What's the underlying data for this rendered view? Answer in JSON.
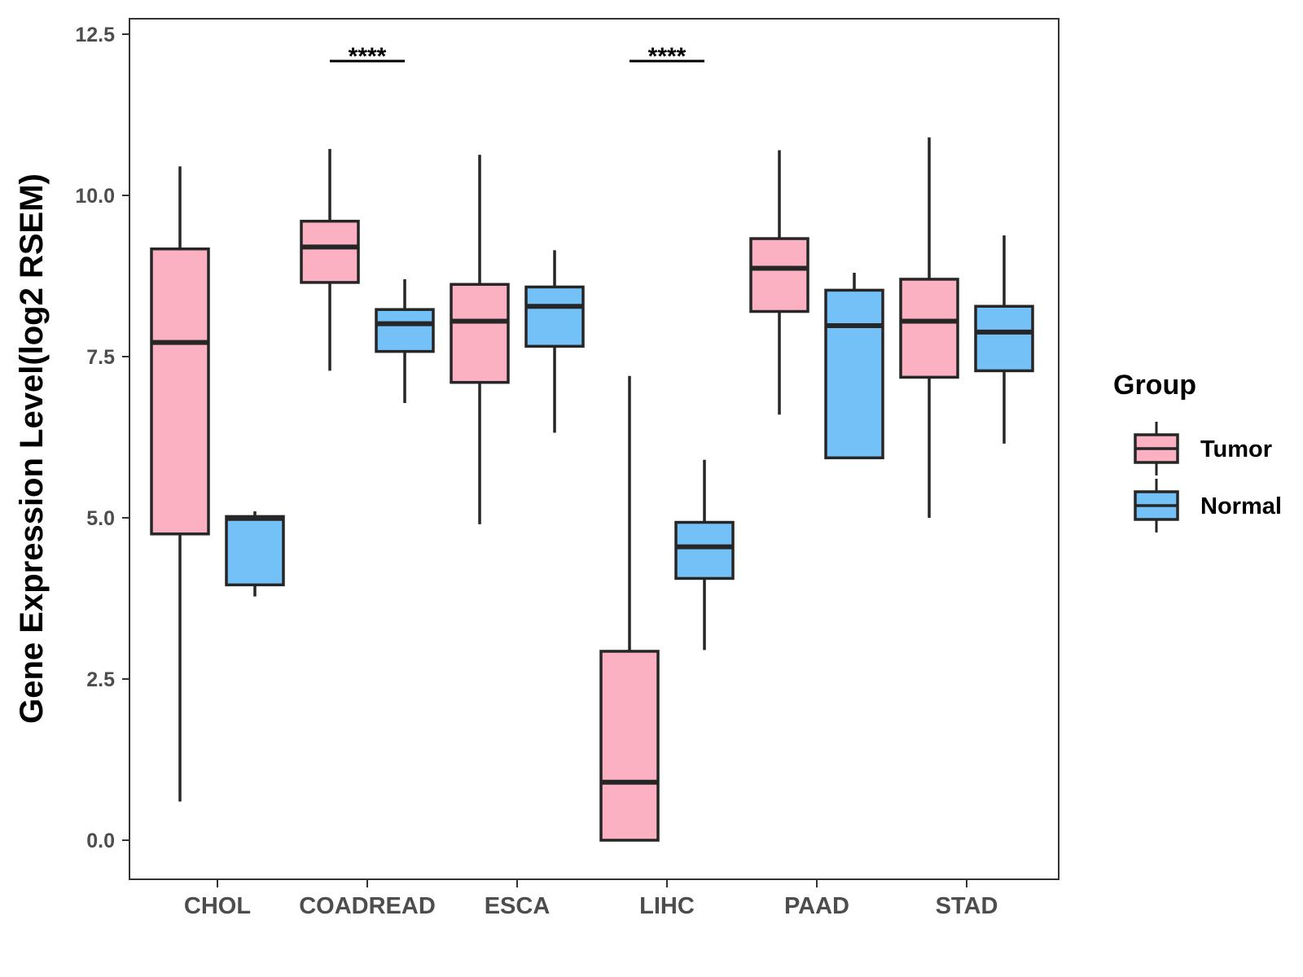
{
  "chart_data": {
    "type": "boxplot",
    "title": "",
    "xlabel": "",
    "ylabel": "Gene Expression Level(log2 RSEM)",
    "ylim": [
      -0.6,
      12.6
    ],
    "yticks": [
      "0.0",
      "2.5",
      "5.0",
      "7.5",
      "10.0",
      "12.5"
    ],
    "ytick_values": [
      0,
      2.5,
      5,
      7.5,
      10,
      12.5
    ],
    "categories": [
      "CHOL",
      "COADREAD",
      "ESCA",
      "LIHC",
      "PAAD",
      "STAD"
    ],
    "grid": false,
    "legend": {
      "title": "Group",
      "position": "right",
      "entries": [
        "Tumor",
        "Normal"
      ]
    },
    "series": [
      {
        "name": "Tumor",
        "color": "#fbb1c1",
        "boxes": [
          {
            "whisker_low": 0.6,
            "q1": 4.75,
            "median": 7.72,
            "q3": 9.17,
            "whisker_high": 10.45
          },
          {
            "whisker_low": 7.28,
            "q1": 8.65,
            "median": 9.2,
            "q3": 9.6,
            "whisker_high": 10.72
          },
          {
            "whisker_low": 4.9,
            "q1": 7.1,
            "median": 8.05,
            "q3": 8.62,
            "whisker_high": 10.63
          },
          {
            "whisker_low": 0.0,
            "q1": 0.0,
            "median": 0.9,
            "q3": 2.93,
            "whisker_high": 7.2
          },
          {
            "whisker_low": 6.6,
            "q1": 8.2,
            "median": 8.87,
            "q3": 9.33,
            "whisker_high": 10.7
          },
          {
            "whisker_low": 5.0,
            "q1": 7.18,
            "median": 8.05,
            "q3": 8.7,
            "whisker_high": 10.9
          }
        ]
      },
      {
        "name": "Normal",
        "color": "#74c1f8",
        "boxes": [
          {
            "whisker_low": 3.78,
            "q1": 3.96,
            "median": 4.99,
            "q3": 5.02,
            "whisker_high": 5.1
          },
          {
            "whisker_low": 6.78,
            "q1": 7.58,
            "median": 8.01,
            "q3": 8.23,
            "whisker_high": 8.7
          },
          {
            "whisker_low": 6.32,
            "q1": 7.66,
            "median": 8.28,
            "q3": 8.58,
            "whisker_high": 9.15
          },
          {
            "whisker_low": 2.95,
            "q1": 4.06,
            "median": 4.55,
            "q3": 4.93,
            "whisker_high": 5.9
          },
          {
            "whisker_low": 5.93,
            "q1": 5.93,
            "median": 7.98,
            "q3": 8.53,
            "whisker_high": 8.8
          },
          {
            "whisker_low": 6.15,
            "q1": 7.28,
            "median": 7.88,
            "q3": 8.28,
            "whisker_high": 9.38
          }
        ]
      }
    ],
    "annotations": [
      {
        "category": "COADREAD",
        "text": "****",
        "y": 12.1
      },
      {
        "category": "LIHC",
        "text": "****",
        "y": 12.1
      }
    ]
  }
}
